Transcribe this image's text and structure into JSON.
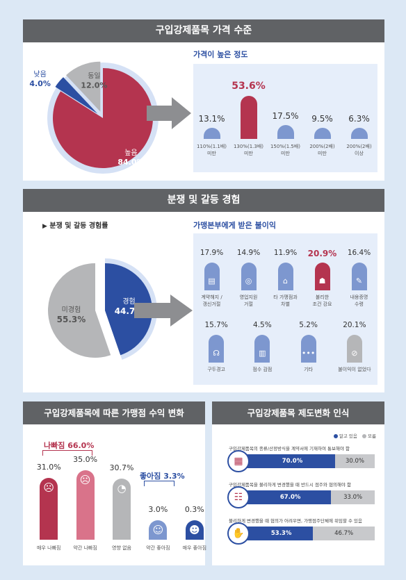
{
  "section1": {
    "header": "구입강제품목 가격 수준",
    "pie": [
      {
        "label": "높음",
        "value": 84.0,
        "display": "84.0%",
        "color": "#b4344f"
      },
      {
        "label": "낮음",
        "value": 4.0,
        "display": "4.0%",
        "color": "#2c4fa2"
      },
      {
        "label": "동일",
        "value": 12.0,
        "display": "12.0%",
        "color": "#b5b6b8"
      }
    ],
    "bars_title": "가격이 높은 정도",
    "bars": [
      {
        "label1": "110%(1.1배)",
        "label2": "미만",
        "value": 13.1,
        "display": "13.1%",
        "highlight": false
      },
      {
        "label1": "130%(1.3배)",
        "label2": "미만",
        "value": 53.6,
        "display": "53.6%",
        "highlight": true
      },
      {
        "label1": "150%(1.5배)",
        "label2": "미만",
        "value": 17.5,
        "display": "17.5%",
        "highlight": false
      },
      {
        "label1": "200%(2배)",
        "label2": "미만",
        "value": 9.5,
        "display": "9.5%",
        "highlight": false
      },
      {
        "label1": "200%(2배)",
        "label2": "이상",
        "value": 6.3,
        "display": "6.3%",
        "highlight": false
      }
    ]
  },
  "section2": {
    "header": "분쟁 및 갈등 경험",
    "pie_title": "분쟁 및 갈등 경험률",
    "pie": [
      {
        "label": "경험",
        "value": 44.7,
        "display": "44.7%",
        "color": "#2c4fa2"
      },
      {
        "label": "미경험",
        "value": 55.3,
        "display": "55.3%",
        "color": "#b5b6b8"
      }
    ],
    "items_title": "가맹본부에게 받은 불이익",
    "items": [
      {
        "label1": "계약해지 /",
        "label2": "갱신거절",
        "value": 17.9,
        "display": "17.9%",
        "icon": "document-icon",
        "glyph": "▤",
        "highlight": false
      },
      {
        "label1": "영업지원",
        "label2": "거절",
        "value": 14.9,
        "display": "14.9%",
        "icon": "target-icon",
        "glyph": "◎",
        "highlight": false
      },
      {
        "label1": "타 가맹점과",
        "label2": "차별",
        "value": 11.9,
        "display": "11.9%",
        "icon": "store-icon",
        "glyph": "⌂",
        "highlight": false
      },
      {
        "label1": "불리한",
        "label2": "조건 강요",
        "value": 20.9,
        "display": "20.9%",
        "icon": "people-icon",
        "glyph": "☗",
        "highlight": true
      },
      {
        "label1": "내용증명",
        "label2": "수령",
        "value": 16.4,
        "display": "16.4%",
        "icon": "certificate-icon",
        "glyph": "✎",
        "highlight": false
      },
      {
        "label1": "구두경고",
        "label2": "",
        "value": 15.7,
        "display": "15.7%",
        "icon": "speaker-icon",
        "glyph": "☊",
        "highlight": false
      },
      {
        "label1": "점수 감점",
        "label2": "",
        "value": 4.5,
        "display": "4.5%",
        "icon": "chart-down-icon",
        "glyph": "▥",
        "highlight": false
      },
      {
        "label1": "기타",
        "label2": "",
        "value": 5.2,
        "display": "5.2%",
        "icon": "dots-icon",
        "glyph": "•••",
        "highlight": false
      },
      {
        "label1": "불이익이 없었다",
        "label2": "",
        "value": 20.1,
        "display": "20.1%",
        "icon": "none-icon",
        "glyph": "⊘",
        "highlight": false
      }
    ]
  },
  "section3": {
    "header": "구입강제품목에 따른 가맹점 수익 변화",
    "worse_label": "나빠짐 66.0%",
    "better_label": "좋아짐 3.3%",
    "bars": [
      {
        "label": "매우 나빠짐",
        "value": 31.0,
        "display": "31.0%",
        "color": "#b4344f",
        "face": "very-sad-face-icon",
        "glyph": "☹"
      },
      {
        "label": "약간 나빠짐",
        "value": 35.0,
        "display": "35.0%",
        "color": "#d9738a",
        "face": "sad-face-icon",
        "glyph": "☹"
      },
      {
        "label": "영향 없음",
        "value": 30.7,
        "display": "30.7%",
        "color": "#b5b6b8",
        "face": "neutral-face-icon",
        "glyph": "◔"
      },
      {
        "label": "약간 좋아짐",
        "value": 3.0,
        "display": "3.0%",
        "color": "#7d97cf",
        "face": "smile-face-icon",
        "glyph": "☺"
      },
      {
        "label": "매우 좋아짐",
        "value": 0.3,
        "display": "0.3%",
        "color": "#2c4fa2",
        "face": "big-smile-face-icon",
        "glyph": "☻"
      }
    ]
  },
  "section4": {
    "header": "구입강제품목 제도변화 인식",
    "legend": [
      {
        "label": "알고 있음",
        "color": "#2c4fa2"
      },
      {
        "label": "모름",
        "color": "#b5b6b8"
      }
    ],
    "rows": [
      {
        "label": "구입강제품목의 종류/산정방식을 계약서에 기재하여 통보해야 함",
        "know": 70.0,
        "know_display": "70.0%",
        "unknown": 30.0,
        "unknown_display": "30.0%",
        "icon": "contract-icon",
        "glyph": "▦"
      },
      {
        "label": "구입강제품목을 불리하게 변경했을 때 반드시 점주와 협의해야 함",
        "know": 67.0,
        "know_display": "67.0%",
        "unknown": 33.0,
        "unknown_display": "33.0%",
        "icon": "meeting-icon",
        "glyph": "☷"
      },
      {
        "label": "불리하게 변경했을 때 협의가 어려우면, 가맹점주단체에 위임할 수 있음",
        "know": 53.3,
        "know_display": "53.3%",
        "unknown": 46.7,
        "unknown_display": "46.7%",
        "icon": "handshake-icon",
        "glyph": "✋"
      }
    ]
  },
  "chart_data": [
    {
      "type": "pie",
      "title": "구입강제품목 가격 수준",
      "categories": [
        "높음",
        "낮음",
        "동일"
      ],
      "values": [
        84.0,
        4.0,
        12.0
      ]
    },
    {
      "type": "bar",
      "title": "가격이 높은 정도",
      "categories": [
        "110%(1.1배) 미만",
        "130%(1.3배) 미만",
        "150%(1.5배) 미만",
        "200%(2배) 미만",
        "200%(2배) 이상"
      ],
      "values": [
        13.1,
        53.6,
        17.5,
        9.5,
        6.3
      ]
    },
    {
      "type": "pie",
      "title": "분쟁 및 갈등 경험률",
      "categories": [
        "경험",
        "미경험"
      ],
      "values": [
        44.7,
        55.3
      ]
    },
    {
      "type": "bar",
      "title": "가맹본부에게 받은 불이익",
      "categories": [
        "계약해지 / 갱신거절",
        "영업지원 거절",
        "타 가맹점과 차별",
        "불리한 조건 강요",
        "내용증명 수령",
        "구두경고",
        "점수 감점",
        "기타",
        "불이익이 없었다"
      ],
      "values": [
        17.9,
        14.9,
        11.9,
        20.9,
        16.4,
        15.7,
        4.5,
        5.2,
        20.1
      ]
    },
    {
      "type": "bar",
      "title": "구입강제품목에 따른 가맹점 수익 변화",
      "categories": [
        "매우 나빠짐",
        "약간 나빠짐",
        "영향 없음",
        "약간 좋아짐",
        "매우 좋아짐"
      ],
      "values": [
        31.0,
        35.0,
        30.7,
        3.0,
        0.3
      ]
    },
    {
      "type": "bar",
      "title": "구입강제품목 제도변화 인식",
      "categories": [
        "구입강제품목의 종류/산정방식을 계약서에 기재하여 통보해야 함",
        "구입강제품목을 불리하게 변경했을 때 반드시 점주와 협의해야 함",
        "불리하게 변경했을 때 협의가 어려우면, 가맹점주단체에 위임할 수 있음"
      ],
      "series": [
        {
          "name": "알고 있음",
          "values": [
            70.0,
            67.0,
            53.3
          ]
        },
        {
          "name": "모름",
          "values": [
            30.0,
            33.0,
            46.7
          ]
        }
      ],
      "stacked": true,
      "orientation": "horizontal"
    }
  ]
}
